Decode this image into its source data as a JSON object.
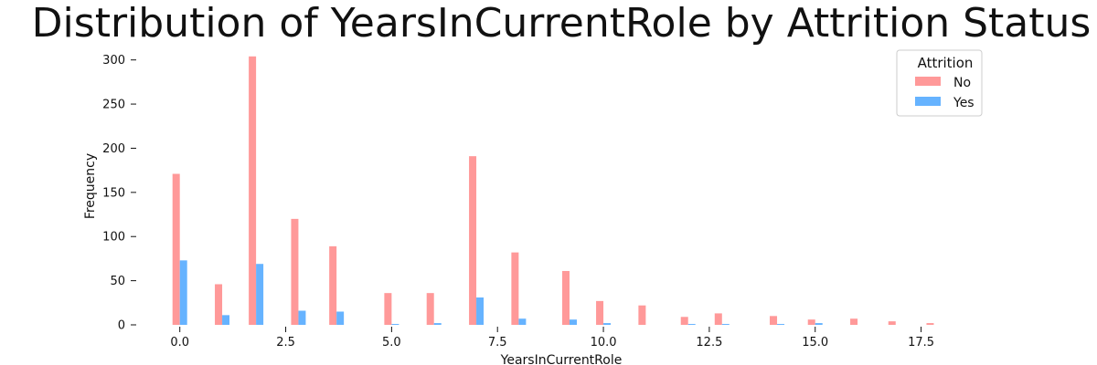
{
  "chart_data": {
    "type": "bar",
    "title": "Distribution of YearsInCurrentRole by Attrition Status",
    "xlabel": "YearsInCurrentRole",
    "ylabel": "Frequency",
    "xlim": [
      -0.9,
      18.2
    ],
    "ylim": [
      0,
      310
    ],
    "x_ticks": [
      "0.0",
      "2.5",
      "5.0",
      "7.5",
      "10.0",
      "12.5",
      "15.0",
      "17.5"
    ],
    "y_ticks": [
      "0",
      "50",
      "100",
      "150",
      "200",
      "250",
      "300"
    ],
    "grid": false,
    "legend": {
      "title": "Attrition",
      "placement": "top-right"
    },
    "series": [
      {
        "name": "No",
        "color": "#ff9999",
        "points": [
          [
            0.0,
            171
          ],
          [
            1.0,
            46
          ],
          [
            1.8,
            304
          ],
          [
            2.8,
            120
          ],
          [
            3.7,
            89
          ],
          [
            5.0,
            36
          ],
          [
            6.0,
            36
          ],
          [
            7.0,
            191
          ],
          [
            8.0,
            82
          ],
          [
            9.2,
            61
          ],
          [
            10.0,
            27
          ],
          [
            11.0,
            22
          ],
          [
            12.0,
            9
          ],
          [
            12.8,
            13
          ],
          [
            14.1,
            10
          ],
          [
            15.0,
            6
          ],
          [
            16.0,
            7
          ],
          [
            16.9,
            4
          ],
          [
            17.8,
            2
          ]
        ]
      },
      {
        "name": "Yes",
        "color": "#66b3ff",
        "points": [
          [
            0.0,
            73
          ],
          [
            1.0,
            11
          ],
          [
            1.8,
            69
          ],
          [
            2.8,
            16
          ],
          [
            3.7,
            15
          ],
          [
            5.0,
            1
          ],
          [
            6.0,
            2
          ],
          [
            7.0,
            31
          ],
          [
            8.0,
            7
          ],
          [
            9.2,
            6
          ],
          [
            10.0,
            2
          ],
          [
            11.0,
            0
          ],
          [
            12.0,
            1
          ],
          [
            12.8,
            1
          ],
          [
            14.1,
            1
          ],
          [
            15.0,
            2
          ],
          [
            16.0,
            0
          ],
          [
            16.9,
            0
          ],
          [
            17.8,
            0
          ]
        ]
      }
    ]
  }
}
